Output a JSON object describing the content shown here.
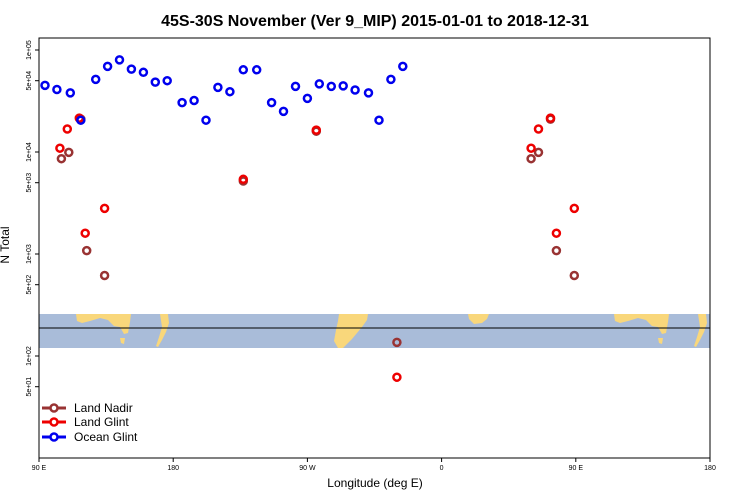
{
  "chart_data": {
    "type": "scatter",
    "title": "45S-30S November (Ver 9_MIP)   2015-01-01 to 2018-12-31",
    "xlabel": "Longitude (deg E)",
    "ylabel": "N Total",
    "x_ticks": [
      "90 E",
      "180",
      "90 W",
      "0",
      "90 E",
      "180"
    ],
    "y_ticks": [
      "5e+01",
      "1e+02",
      "5e+02",
      "1e+03",
      "5e+03",
      "1e+04",
      "5e+04",
      "1e+05"
    ],
    "y_scale": "log",
    "ylim": [
      50,
      100000
    ],
    "legend_position": "bottom-left",
    "colors": {
      "land_nadir": "#993333",
      "land_glint": "#ee0000",
      "ocean_glint": "#0000ee",
      "ocean_band": "#a9bcd9",
      "land_band": "#f9d77b"
    },
    "series": [
      {
        "name": "Land Nadir",
        "color": "#993333",
        "points": [
          {
            "x": 105,
            "y": 8600
          },
          {
            "x": 110,
            "y": 9900
          },
          {
            "x": 118,
            "y": 21000
          },
          {
            "x": 122,
            "y": 1080
          },
          {
            "x": 134,
            "y": 615
          },
          {
            "x": 227,
            "y": 5200
          },
          {
            "x": 276,
            "y": 16000
          },
          {
            "x": 330,
            "y": 136
          },
          {
            "x": 420,
            "y": 8600
          },
          {
            "x": 425,
            "y": 9900
          },
          {
            "x": 433,
            "y": 21000
          },
          {
            "x": 437,
            "y": 1080
          },
          {
            "x": 449,
            "y": 615
          }
        ]
      },
      {
        "name": "Land Glint",
        "color": "#ee0000",
        "points": [
          {
            "x": 104,
            "y": 10900
          },
          {
            "x": 109,
            "y": 16800
          },
          {
            "x": 117,
            "y": 21500
          },
          {
            "x": 121,
            "y": 1600
          },
          {
            "x": 134,
            "y": 2800
          },
          {
            "x": 227,
            "y": 5400
          },
          {
            "x": 276,
            "y": 16400
          },
          {
            "x": 330,
            "y": 62
          },
          {
            "x": 420,
            "y": 10900
          },
          {
            "x": 425,
            "y": 16800
          },
          {
            "x": 433,
            "y": 21500
          },
          {
            "x": 437,
            "y": 1600
          },
          {
            "x": 449,
            "y": 2800
          }
        ]
      },
      {
        "name": "Ocean Glint",
        "color": "#0000ee",
        "points": [
          {
            "x": 94,
            "y": 45000
          },
          {
            "x": 102,
            "y": 41000
          },
          {
            "x": 111,
            "y": 38000
          },
          {
            "x": 118,
            "y": 20500
          },
          {
            "x": 128,
            "y": 51500
          },
          {
            "x": 136,
            "y": 69000
          },
          {
            "x": 144,
            "y": 80000
          },
          {
            "x": 152,
            "y": 65000
          },
          {
            "x": 160,
            "y": 60500
          },
          {
            "x": 168,
            "y": 48500
          },
          {
            "x": 176,
            "y": 50000
          },
          {
            "x": 186,
            "y": 30500
          },
          {
            "x": 194,
            "y": 32000
          },
          {
            "x": 202,
            "y": 20500
          },
          {
            "x": 210,
            "y": 43000
          },
          {
            "x": 218,
            "y": 39000
          },
          {
            "x": 227,
            "y": 64000
          },
          {
            "x": 236,
            "y": 64000
          },
          {
            "x": 246,
            "y": 30500
          },
          {
            "x": 254,
            "y": 25000
          },
          {
            "x": 262,
            "y": 44000
          },
          {
            "x": 270,
            "y": 33500
          },
          {
            "x": 278,
            "y": 46500
          },
          {
            "x": 286,
            "y": 44000
          },
          {
            "x": 294,
            "y": 44500
          },
          {
            "x": 302,
            "y": 40500
          },
          {
            "x": 311,
            "y": 38000
          },
          {
            "x": 318,
            "y": 20500
          },
          {
            "x": 326,
            "y": 51500
          },
          {
            "x": 334,
            "y": 69000
          }
        ]
      }
    ]
  }
}
